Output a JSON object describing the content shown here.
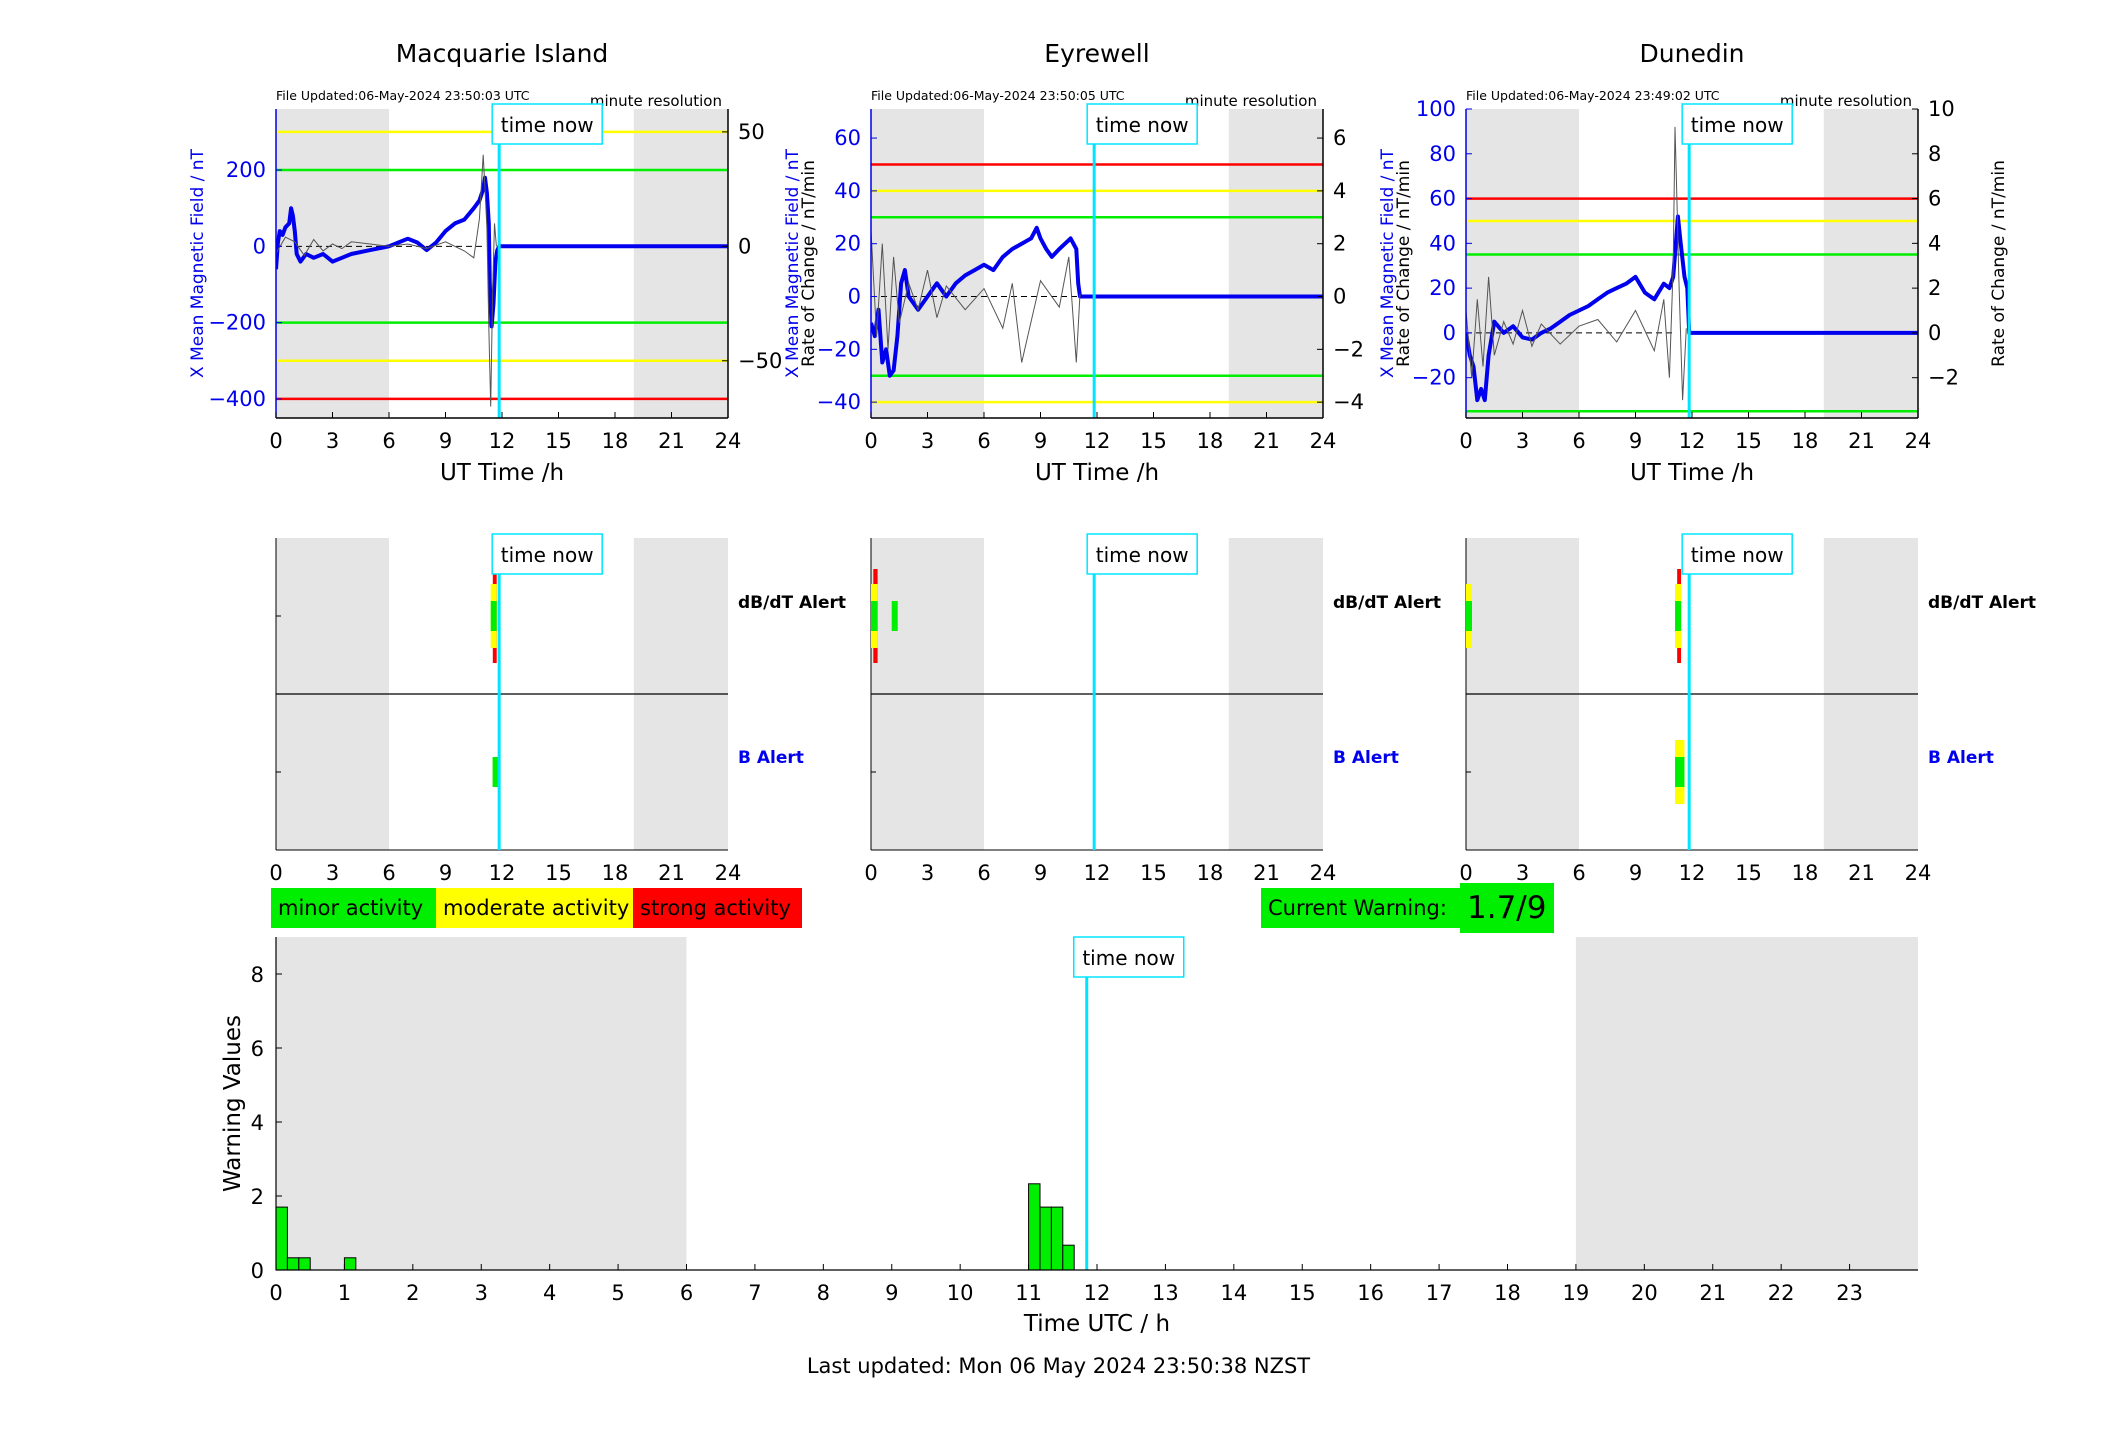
{
  "colors": {
    "field_line": "#0000ee",
    "rate_line": "#555555",
    "time_now": "#00e5ff",
    "night_shade": "#e5e5e5",
    "threshold_red": "#ff0000",
    "threshold_yellow": "#ffff00",
    "threshold_green": "#00ee00",
    "bar_fill": "#00ee00"
  },
  "labels": {
    "time_now": "time now",
    "minute_resolution": "minute resolution",
    "x_axis_station": "UT Time /h",
    "y_left": "X Mean Magnetic Field / nT",
    "y_right": "Rate of Change / nT/min",
    "dbdt_alert": "dB/dT Alert",
    "b_alert": "B Alert"
  },
  "legend": {
    "minor": "minor activity",
    "moderate": "moderate activity",
    "strong": "strong activity",
    "minor_color": "#00ee00",
    "moderate_color": "#ffff00",
    "strong_color": "#ff0000"
  },
  "current_warning": {
    "label": "Current Warning:",
    "value": "1.7/9"
  },
  "last_updated": "Last updated: Mon 06 May 2024 23:50:38 NZST",
  "chart_data": [
    {
      "type": "line",
      "title": "Macquarie Island",
      "file_updated": "File Updated:06-May-2024 23:50:03 UTC",
      "xlabel": "UT Time /h",
      "ylabel": "X Mean Magnetic Field / nT",
      "y2label": "Rate of Change / nT/min",
      "xlim": [
        0,
        24
      ],
      "xticks": [
        0,
        3,
        6,
        9,
        12,
        15,
        18,
        21,
        24
      ],
      "ylim": [
        -450,
        360
      ],
      "yticks": [
        -400,
        -200,
        0,
        200
      ],
      "y2lim": [
        -75,
        60
      ],
      "y2ticks": [
        -50,
        0,
        50
      ],
      "night_shade": [
        [
          0,
          6
        ],
        [
          19,
          24
        ]
      ],
      "time_now": 11.85,
      "thresholds": [
        {
          "value": 300,
          "color": "yellow"
        },
        {
          "value": 200,
          "color": "green"
        },
        {
          "value": -200,
          "color": "green"
        },
        {
          "value": -300,
          "color": "yellow"
        },
        {
          "value": -400,
          "color": "red"
        }
      ],
      "series": [
        {
          "axis": "left",
          "style": "field",
          "x": [
            0,
            0.1,
            0.2,
            0.35,
            0.5,
            0.7,
            0.8,
            0.9,
            1.0,
            1.1,
            1.3,
            1.6,
            2,
            2.5,
            3,
            3.5,
            4,
            5,
            6,
            6.5,
            7,
            7.5,
            8,
            8.5,
            9,
            9.5,
            10,
            10.5,
            10.8,
            11.0,
            11.1,
            11.2,
            11.3,
            11.35,
            11.45,
            11.55,
            11.65,
            11.75,
            11.85,
            24
          ],
          "y": [
            -60,
            10,
            40,
            30,
            50,
            60,
            100,
            80,
            40,
            -20,
            -40,
            -20,
            -30,
            -20,
            -40,
            -30,
            -20,
            -10,
            0,
            10,
            20,
            10,
            -10,
            10,
            40,
            60,
            70,
            100,
            120,
            150,
            180,
            140,
            60,
            -100,
            -210,
            -150,
            -40,
            -10,
            0,
            0
          ]
        },
        {
          "axis": "right",
          "style": "rate",
          "x": [
            0,
            0.5,
            1,
            1.5,
            2,
            2.5,
            3,
            3.5,
            4,
            5,
            6,
            7,
            8,
            9,
            10,
            10.5,
            10.8,
            11.0,
            11.1,
            11.2,
            11.3,
            11.4,
            11.5,
            11.6,
            11.7
          ],
          "y": [
            -3,
            4,
            2,
            -4,
            3,
            -2,
            1,
            -1,
            2,
            1,
            0,
            1,
            -1,
            2,
            -2,
            -5,
            12,
            40,
            25,
            8,
            -35,
            -70,
            -20,
            10,
            0
          ]
        }
      ],
      "alerts": {
        "dbdt": [
          {
            "x0": 11.4,
            "x1": 11.7,
            "level": "strong"
          }
        ],
        "b": [
          {
            "x0": 11.5,
            "x1": 11.65,
            "level": "minor"
          }
        ]
      }
    },
    {
      "type": "line",
      "title": "Eyrewell",
      "file_updated": "File Updated:06-May-2024 23:50:05 UTC",
      "xlabel": "UT Time /h",
      "ylabel": "X Mean Magnetic Field / nT",
      "y2label": "Rate of Change / nT/min",
      "xlim": [
        0,
        24
      ],
      "xticks": [
        0,
        3,
        6,
        9,
        12,
        15,
        18,
        21,
        24
      ],
      "ylim": [
        -46,
        71
      ],
      "yticks": [
        -40,
        -20,
        0,
        20,
        40,
        60
      ],
      "y2lim": [
        -4.6,
        7.1
      ],
      "y2ticks": [
        -4,
        -2,
        0,
        2,
        4,
        6
      ],
      "night_shade": [
        [
          0,
          6
        ],
        [
          19,
          24
        ]
      ],
      "time_now": 11.85,
      "thresholds": [
        {
          "value": 50,
          "color": "red"
        },
        {
          "value": 40,
          "color": "yellow"
        },
        {
          "value": 30,
          "color": "green"
        },
        {
          "value": -30,
          "color": "green"
        },
        {
          "value": -40,
          "color": "yellow"
        }
      ],
      "series": [
        {
          "axis": "left",
          "style": "field",
          "x": [
            0,
            0.2,
            0.4,
            0.6,
            0.8,
            1.0,
            1.2,
            1.4,
            1.6,
            1.8,
            2.0,
            2.5,
            3,
            3.5,
            4,
            4.5,
            5,
            5.5,
            6,
            6.5,
            7,
            7.5,
            8,
            8.5,
            8.8,
            9.0,
            9.3,
            9.6,
            10,
            10.3,
            10.6,
            10.9,
            11.0,
            11.1,
            24
          ],
          "y": [
            -10,
            -15,
            -5,
            -25,
            -20,
            -30,
            -28,
            -15,
            5,
            10,
            0,
            -5,
            0,
            5,
            0,
            5,
            8,
            10,
            12,
            10,
            15,
            18,
            20,
            22,
            26,
            22,
            18,
            15,
            18,
            20,
            22,
            18,
            5,
            0,
            0
          ]
        },
        {
          "axis": "right",
          "style": "rate",
          "x": [
            0,
            0.3,
            0.6,
            0.9,
            1.2,
            1.5,
            2,
            2.5,
            3,
            3.5,
            4,
            5,
            6,
            7,
            7.5,
            8,
            9,
            10,
            10.5,
            10.9,
            11.1
          ],
          "y": [
            2.5,
            -1.5,
            2.0,
            -2.0,
            1.5,
            -1.0,
            0.5,
            -0.5,
            1.0,
            -0.8,
            0.4,
            -0.5,
            0.3,
            -1.2,
            0.5,
            -2.5,
            0.6,
            -0.4,
            1.5,
            -2.5,
            0.1
          ]
        }
      ],
      "alerts": {
        "dbdt": [
          {
            "x0": 0.0,
            "x1": 0.35,
            "level": "strong"
          },
          {
            "x0": 1.1,
            "x1": 1.3,
            "level": "minor"
          }
        ],
        "b": []
      }
    },
    {
      "type": "line",
      "title": "Dunedin",
      "file_updated": "File Updated:06-May-2024 23:49:02 UTC",
      "xlabel": "UT Time /h",
      "ylabel": "X Mean Magnetic Field / nT",
      "y2label": "Rate of Change / nT/min",
      "xlim": [
        0,
        24
      ],
      "xticks": [
        0,
        3,
        6,
        9,
        12,
        15,
        18,
        21,
        24
      ],
      "ylim": [
        -38,
        100
      ],
      "yticks": [
        -20,
        0,
        20,
        40,
        60,
        80,
        100
      ],
      "y2lim": [
        -3.8,
        10
      ],
      "y2ticks": [
        -2,
        0,
        2,
        4,
        6,
        8,
        10
      ],
      "night_shade": [
        [
          0,
          6
        ],
        [
          19,
          24
        ]
      ],
      "time_now": 11.85,
      "thresholds": [
        {
          "value": 60,
          "color": "red"
        },
        {
          "value": 50,
          "color": "yellow"
        },
        {
          "value": 35,
          "color": "green"
        },
        {
          "value": -35,
          "color": "green"
        }
      ],
      "series": [
        {
          "axis": "left",
          "style": "field",
          "x": [
            0,
            0.2,
            0.4,
            0.6,
            0.8,
            1.0,
            1.2,
            1.5,
            2,
            2.5,
            3,
            3.5,
            4,
            4.5,
            5,
            5.5,
            6,
            6.5,
            7,
            7.5,
            8,
            8.5,
            9,
            9.5,
            10,
            10.5,
            10.8,
            11.0,
            11.1,
            11.25,
            11.4,
            11.6,
            11.75,
            11.85,
            24
          ],
          "y": [
            0,
            -10,
            -15,
            -30,
            -25,
            -30,
            -10,
            5,
            0,
            3,
            -2,
            -3,
            0,
            2,
            5,
            8,
            10,
            12,
            15,
            18,
            20,
            22,
            25,
            18,
            15,
            22,
            20,
            25,
            35,
            52,
            40,
            25,
            20,
            0,
            0
          ]
        },
        {
          "axis": "right",
          "style": "rate",
          "x": [
            0,
            0.3,
            0.6,
            0.9,
            1.2,
            1.5,
            2,
            2.5,
            3,
            3.5,
            4,
            5,
            6,
            7,
            8,
            9,
            10,
            10.5,
            10.8,
            11.0,
            11.1,
            11.2,
            11.3,
            11.5,
            11.7
          ],
          "y": [
            1.0,
            -2.0,
            1.5,
            -1.5,
            2.5,
            -1.0,
            0.5,
            -0.5,
            1.0,
            -0.6,
            0.4,
            -0.5,
            0.3,
            0.6,
            -0.4,
            1.0,
            -0.8,
            1.5,
            -2.0,
            3.0,
            9.2,
            6.0,
            2.5,
            -3.0,
            0.2
          ]
        }
      ],
      "alerts": {
        "dbdt": [
          {
            "x0": 0.0,
            "x1": 0.3,
            "level": "moderate"
          },
          {
            "x0": 11.1,
            "x1": 11.4,
            "level": "strong"
          }
        ],
        "b": [
          {
            "x0": 11.1,
            "x1": 11.6,
            "level": "moderate"
          }
        ]
      }
    },
    {
      "type": "bar",
      "xlabel": "Time UTC / h",
      "ylabel": "Warning Values",
      "xlim": [
        0,
        24
      ],
      "xticks": [
        0,
        1,
        2,
        3,
        4,
        5,
        6,
        7,
        8,
        9,
        10,
        11,
        12,
        13,
        14,
        15,
        16,
        17,
        18,
        19,
        20,
        21,
        22,
        23
      ],
      "ylim": [
        0,
        9
      ],
      "yticks": [
        0,
        2,
        4,
        6,
        8
      ],
      "night_shade": [
        [
          0,
          6
        ],
        [
          19,
          24
        ]
      ],
      "time_now": 11.85,
      "bar_width_h": 0.1667,
      "bars": [
        {
          "x": 0.0,
          "y": 1.7
        },
        {
          "x": 0.1667,
          "y": 0.33
        },
        {
          "x": 0.3333,
          "y": 0.33
        },
        {
          "x": 1.0,
          "y": 0.33
        },
        {
          "x": 11.0,
          "y": 2.33
        },
        {
          "x": 11.1667,
          "y": 1.7
        },
        {
          "x": 11.3333,
          "y": 1.7
        },
        {
          "x": 11.5,
          "y": 0.67
        }
      ]
    }
  ]
}
